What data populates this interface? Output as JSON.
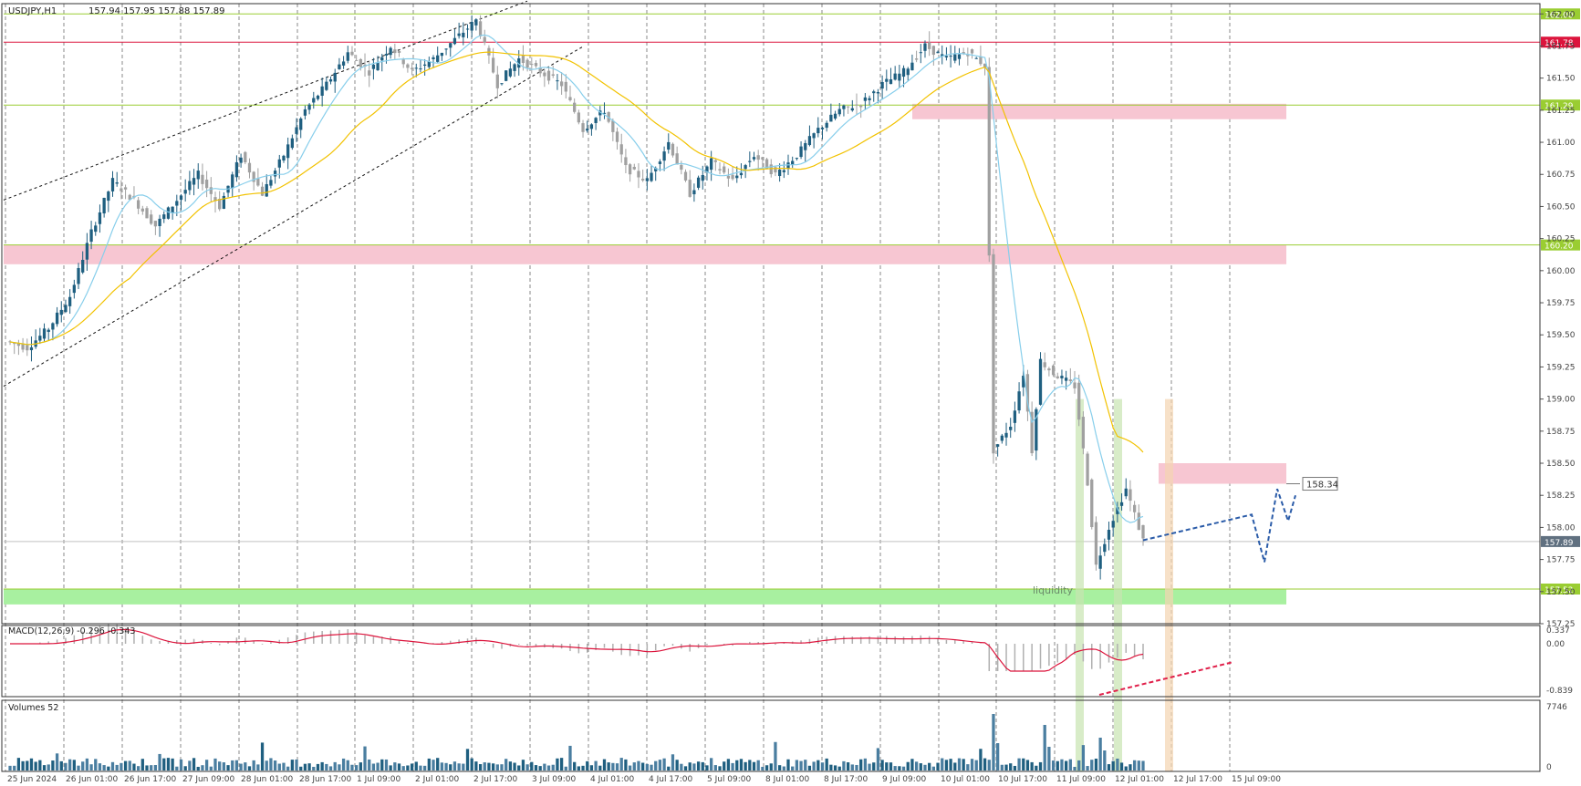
{
  "header": {
    "symbol": "USDJPY,H1",
    "ohlc": "157.94 157.95 157.88 157.89"
  },
  "chart_data": {
    "type": "candlestick",
    "title": "USDJPY,H1",
    "y_ticks": [
      "162.00",
      "161.75",
      "161.50",
      "161.25",
      "161.00",
      "160.75",
      "160.50",
      "160.25",
      "160.00",
      "159.75",
      "159.50",
      "159.25",
      "159.00",
      "158.75",
      "158.50",
      "158.25",
      "158.00",
      "157.75",
      "157.50",
      "157.25"
    ],
    "ylim": [
      157.25,
      162.08
    ],
    "x_labels": [
      "25 Jun 2024",
      "26 Jun 01:00",
      "26 Jun 17:00",
      "27 Jun 09:00",
      "28 Jun 01:00",
      "28 Jun 17:00",
      "1 Jul 09:00",
      "2 Jul 01:00",
      "2 Jul 17:00",
      "3 Jul 09:00",
      "4 Jul 01:00",
      "4 Jul 17:00",
      "5 Jul 09:00",
      "8 Jul 01:00",
      "8 Jul 17:00",
      "9 Jul 09:00",
      "10 Jul 01:00",
      "10 Jul 17:00",
      "11 Jul 09:00",
      "12 Jul 01:00",
      "12 Jul 17:00",
      "15 Jul 09:00"
    ],
    "price_path": [
      [
        0,
        159.45
      ],
      [
        5,
        159.4
      ],
      [
        10,
        159.55
      ],
      [
        15,
        159.8
      ],
      [
        20,
        160.3
      ],
      [
        25,
        160.7
      ],
      [
        30,
        160.55
      ],
      [
        35,
        160.35
      ],
      [
        40,
        160.55
      ],
      [
        45,
        160.75
      ],
      [
        50,
        160.5
      ],
      [
        55,
        160.9
      ],
      [
        60,
        160.6
      ],
      [
        65,
        160.9
      ],
      [
        70,
        161.25
      ],
      [
        75,
        161.45
      ],
      [
        80,
        161.7
      ],
      [
        85,
        161.55
      ],
      [
        90,
        161.75
      ],
      [
        95,
        161.55
      ],
      [
        100,
        161.65
      ],
      [
        105,
        161.8
      ],
      [
        110,
        161.95
      ],
      [
        115,
        161.45
      ],
      [
        120,
        161.65
      ],
      [
        125,
        161.55
      ],
      [
        130,
        161.45
      ],
      [
        135,
        161.1
      ],
      [
        140,
        161.25
      ],
      [
        145,
        160.8
      ],
      [
        150,
        160.7
      ],
      [
        155,
        161.0
      ],
      [
        160,
        160.6
      ],
      [
        165,
        160.85
      ],
      [
        170,
        160.7
      ],
      [
        175,
        160.9
      ],
      [
        180,
        160.75
      ],
      [
        185,
        160.9
      ],
      [
        190,
        161.1
      ],
      [
        195,
        161.25
      ],
      [
        200,
        161.3
      ],
      [
        205,
        161.45
      ],
      [
        210,
        161.55
      ],
      [
        215,
        161.75
      ],
      [
        220,
        161.65
      ],
      [
        225,
        161.7
      ],
      [
        229,
        161.6
      ],
      [
        231,
        158.6
      ],
      [
        235,
        158.8
      ],
      [
        238,
        159.2
      ],
      [
        240,
        158.6
      ],
      [
        242,
        159.3
      ],
      [
        245,
        159.2
      ],
      [
        250,
        159.1
      ],
      [
        253,
        158.35
      ],
      [
        255,
        157.7
      ],
      [
        258,
        158.0
      ],
      [
        262,
        158.3
      ],
      [
        266,
        157.9
      ]
    ],
    "overlays": [
      {
        "kind": "horizontal-line",
        "price": 162.0,
        "color": "#9acd32",
        "label": "162.00"
      },
      {
        "kind": "horizontal-line",
        "price": 161.78,
        "color": "#dc143c",
        "label": "161.78"
      },
      {
        "kind": "horizontal-line",
        "price": 161.29,
        "color": "#9acd32",
        "label": "161.29"
      },
      {
        "kind": "horizontal-line",
        "price": 160.2,
        "color": "#9acd32",
        "label": "160.20"
      },
      {
        "kind": "horizontal-line",
        "price": 157.52,
        "color": "#9acd32",
        "label": "157.52"
      },
      {
        "kind": "zone",
        "price_low": 161.18,
        "price_high": 161.3,
        "color": "#f7c6d2"
      },
      {
        "kind": "zone",
        "price_low": 160.05,
        "price_high": 160.2,
        "color": "#f7c6d2"
      },
      {
        "kind": "zone",
        "price_low": 158.34,
        "price_high": 158.5,
        "color": "#f7c6d2"
      },
      {
        "kind": "zone",
        "price_low": 157.4,
        "price_high": 157.52,
        "color": "#a8f0a0"
      }
    ],
    "current_price": "157.89",
    "marked_level": "158.34",
    "zone_label": "liquidity",
    "ma_fast_color": "#87ceeb",
    "ma_slow_color": "#f2c200"
  },
  "macd": {
    "label": "MACD(12,26,9) -0.296 -0.343",
    "ticks": [
      "0.337",
      "0.00",
      "-0.839"
    ],
    "signal_color": "#dc143c"
  },
  "volumes": {
    "label": "Volumes 52",
    "ticks": [
      "7746",
      "0"
    ]
  },
  "colors": {
    "up_candle": "#1f5f80",
    "down_candle": "#a0a0a0",
    "current_price_bg": "#607080",
    "support_label_bg": "#9acd32",
    "resistance_label_bg": "#dc143c"
  }
}
